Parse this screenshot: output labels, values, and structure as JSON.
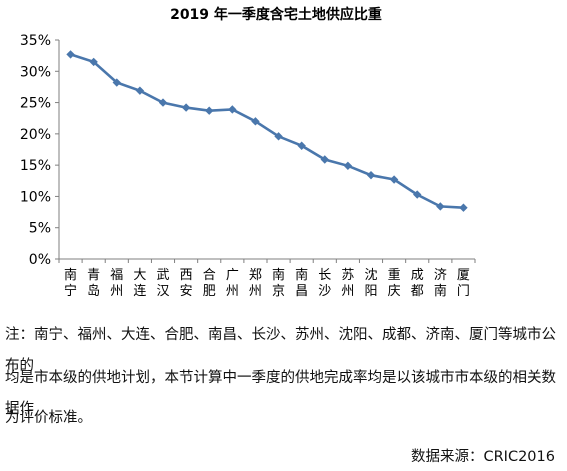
{
  "chart_data": {
    "type": "line",
    "title": "2019 年一季度含宅土地供应比重",
    "xlabel": "",
    "ylabel": "",
    "ylim": [
      0,
      35
    ],
    "yticks": [
      "0%",
      "5%",
      "10%",
      "15%",
      "20%",
      "25%",
      "30%",
      "35%"
    ],
    "grid": false,
    "legend": "none",
    "categories": [
      "南宁",
      "青岛",
      "福州",
      "大连",
      "武汉",
      "西安",
      "合肥",
      "广州",
      "郑州",
      "南京",
      "南昌",
      "长沙",
      "苏州",
      "沈阳",
      "重庆",
      "成都",
      "济南",
      "厦门"
    ],
    "series": [
      {
        "values": [
          32.7,
          31.5,
          28.2,
          26.9,
          25.0,
          24.2,
          23.7,
          23.9,
          22.0,
          19.6,
          18.1,
          15.9,
          14.9,
          13.4,
          12.7,
          10.3,
          8.4,
          8.2
        ]
      }
    ],
    "line_color": "#4a77ac"
  },
  "footnote": {
    "line1": "注：南宁、福州、大连、合肥、南昌、长沙、苏州、沈阳、成都、济南、厦门等城市公布的",
    "line2": "均是市本级的供地计划，本节计算中一季度的供地完成率均是以该城市市本级的相关数据作",
    "line3": "为评价标准。"
  },
  "source": "数据来源：CRIC2016"
}
